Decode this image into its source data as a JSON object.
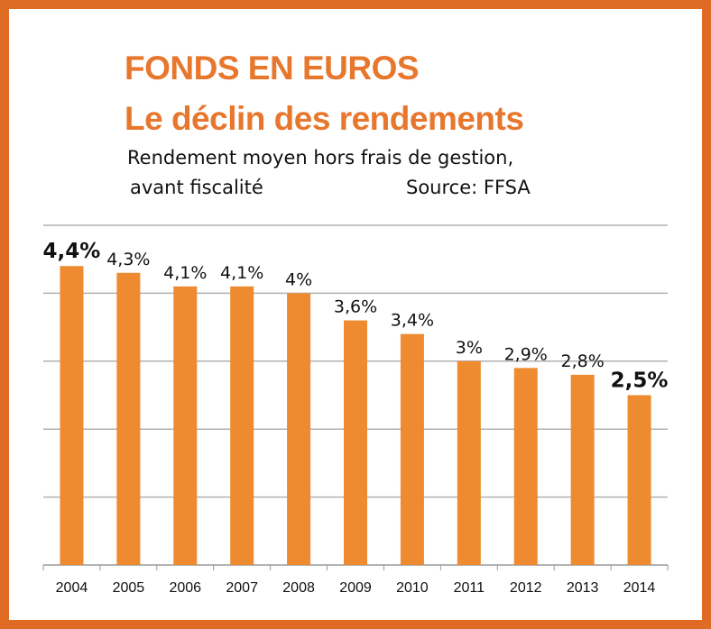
{
  "header": {
    "title_line1": "FONDS EN EUROS",
    "title_line2": "Le déclin des rendements",
    "subtitle_line1": "Rendement moyen hors frais de gestion,",
    "subtitle_line2": "avant fiscalité",
    "source": "Source: FFSA"
  },
  "colors": {
    "frame": "#e06b24",
    "bar": "#ee8a2f",
    "title": "#e8772e",
    "grid": "#b0b0b0"
  },
  "chart_data": {
    "type": "bar",
    "categories": [
      "2004",
      "2005",
      "2006",
      "2007",
      "2008",
      "2009",
      "2010",
      "2011",
      "2012",
      "2013",
      "2014"
    ],
    "values": [
      4.4,
      4.3,
      4.1,
      4.1,
      4.0,
      3.6,
      3.4,
      3.0,
      2.9,
      2.8,
      2.5
    ],
    "data_labels": [
      "4,4%",
      "4,3%",
      "4,1%",
      "4,1%",
      "4%",
      "3,6%",
      "3,4%",
      "3%",
      "2,9%",
      "2,8%",
      "2,5%"
    ],
    "highlighted_labels": [
      "4,4%",
      "2,5%"
    ],
    "ylim": [
      0,
      5
    ],
    "grid": true,
    "y_tick_labels_shown": false,
    "legend": "none"
  }
}
